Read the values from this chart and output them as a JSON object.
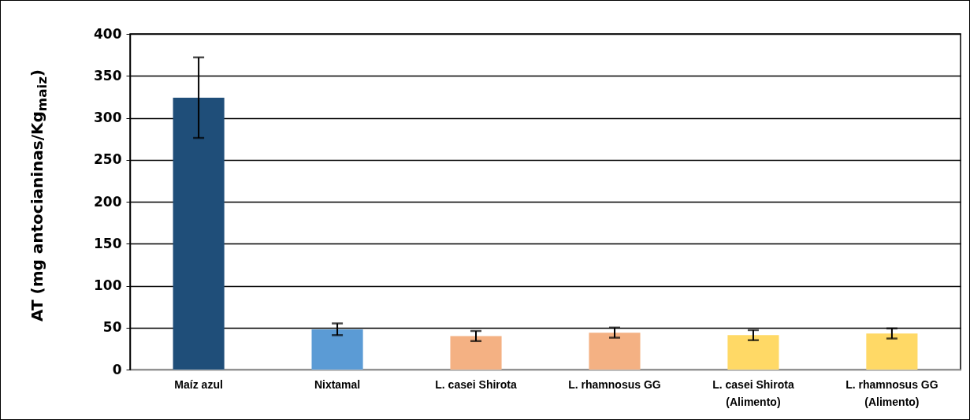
{
  "chart_data": {
    "type": "bar",
    "ylabel": "AT (mg antocianinas/Kg$_{maiz}$)",
    "categories": [
      "Maíz azul",
      "Nixtamal",
      "L. casei Shirota",
      "L. rhamnosus GG",
      "L. casei Shirota (Alimento)",
      "L. rhamnosus GG (Alimento)"
    ],
    "values": [
      324,
      48,
      40,
      44,
      41,
      43
    ],
    "errors": [
      48,
      7,
      6,
      6,
      6,
      6
    ],
    "colors": [
      "#1f4e79",
      "#5b9bd5",
      "#f4b183",
      "#f4b183",
      "#ffd966",
      "#ffd966"
    ],
    "ylim": [
      0,
      400
    ],
    "yticks": [
      0,
      50,
      100,
      150,
      200,
      250,
      300,
      350,
      400
    ],
    "grid": "y"
  }
}
